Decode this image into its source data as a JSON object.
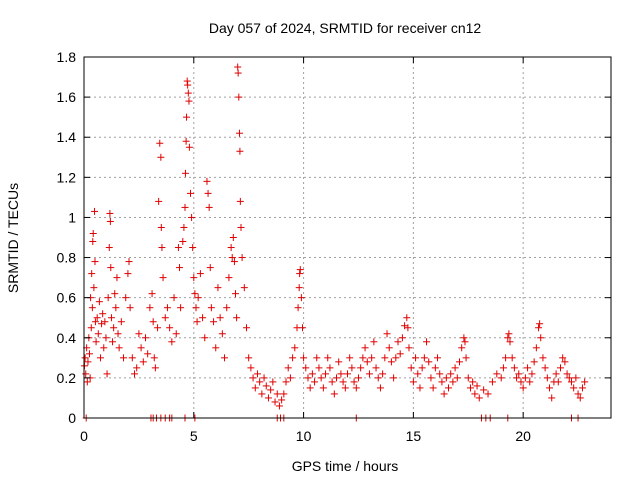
{
  "chart_data": {
    "type": "scatter",
    "title": "Day 057 of 2024, SRMTID for receiver cn12",
    "xlabel": "GPS time / hours",
    "ylabel": "SRMTID / TECUs",
    "xlim": [
      0,
      24
    ],
    "ylim": [
      0,
      1.8
    ],
    "xticks": [
      0,
      5,
      10,
      15,
      20
    ],
    "xtick_labels": [
      "0",
      "5",
      "10",
      "15",
      "20"
    ],
    "yticks": [
      0,
      0.2,
      0.4,
      0.6,
      0.8,
      1.0,
      1.2,
      1.4,
      1.6,
      1.8
    ],
    "ytick_labels": [
      "0",
      "0.2",
      "0.4",
      "0.6",
      "0.8",
      "1",
      "1.2",
      "1.4",
      "1.6",
      "1.8"
    ],
    "grid": true,
    "marker": "+",
    "color": "#e00000",
    "series": [
      {
        "name": "SRMTID",
        "points": [
          [
            0.02,
            0.26
          ],
          [
            0.05,
            0.3
          ],
          [
            0.08,
            0.22
          ],
          [
            0.12,
            0.35
          ],
          [
            0.15,
            0.18
          ],
          [
            0.18,
            0.28
          ],
          [
            0.22,
            0.4
          ],
          [
            0.25,
            0.32
          ],
          [
            0.28,
            0.2
          ],
          [
            0.3,
            0.6
          ],
          [
            0.33,
            0.45
          ],
          [
            0.35,
            0.72
          ],
          [
            0.38,
            0.55
          ],
          [
            0.4,
            0.88
          ],
          [
            0.42,
            0.92
          ],
          [
            0.45,
            0.65
          ],
          [
            0.48,
            1.03
          ],
          [
            0.5,
            0.78
          ],
          [
            0.52,
            0.48
          ],
          [
            0.55,
            0.38
          ],
          [
            0.6,
            0.5
          ],
          [
            0.65,
            0.42
          ],
          [
            0.7,
            0.58
          ],
          [
            0.75,
            0.3
          ],
          [
            0.8,
            0.47
          ],
          [
            0.85,
            0.52
          ],
          [
            0.9,
            0.35
          ],
          [
            0.95,
            0.48
          ],
          [
            1.0,
            0.4
          ],
          [
            1.05,
            0.22
          ],
          [
            1.1,
            0.6
          ],
          [
            1.15,
            0.85
          ],
          [
            1.18,
            1.02
          ],
          [
            1.2,
            0.98
          ],
          [
            1.22,
            0.75
          ],
          [
            1.25,
            0.5
          ],
          [
            1.3,
            0.38
          ],
          [
            1.35,
            0.45
          ],
          [
            1.4,
            0.62
          ],
          [
            1.45,
            0.55
          ],
          [
            1.5,
            0.7
          ],
          [
            1.55,
            0.42
          ],
          [
            1.6,
            0.35
          ],
          [
            1.7,
            0.48
          ],
          [
            1.8,
            0.3
          ],
          [
            1.9,
            0.6
          ],
          [
            2.0,
            0.72
          ],
          [
            2.05,
            0.78
          ],
          [
            2.1,
            0.55
          ],
          [
            2.2,
            0.3
          ],
          [
            2.3,
            0.22
          ],
          [
            2.4,
            0.25
          ],
          [
            2.5,
            0.42
          ],
          [
            2.6,
            0.35
          ],
          [
            2.7,
            0.28
          ],
          [
            2.8,
            0.4
          ],
          [
            2.9,
            0.32
          ],
          [
            3.0,
            0.55
          ],
          [
            3.1,
            0.62
          ],
          [
            3.15,
            0.48
          ],
          [
            3.2,
            0.3
          ],
          [
            3.25,
            0.25
          ],
          [
            3.35,
            0.45
          ],
          [
            3.4,
            1.08
          ],
          [
            3.45,
            1.37
          ],
          [
            3.5,
            1.3
          ],
          [
            3.52,
            0.95
          ],
          [
            3.55,
            0.85
          ],
          [
            3.6,
            0.7
          ],
          [
            3.7,
            0.5
          ],
          [
            3.8,
            0.55
          ],
          [
            3.9,
            0.45
          ],
          [
            4.0,
            0.38
          ],
          [
            4.1,
            0.6
          ],
          [
            4.2,
            0.42
          ],
          [
            4.3,
            0.85
          ],
          [
            4.35,
            0.75
          ],
          [
            4.4,
            0.55
          ],
          [
            4.5,
            0.88
          ],
          [
            4.55,
            0.95
          ],
          [
            4.6,
            1.05
          ],
          [
            4.62,
            1.22
          ],
          [
            4.65,
            1.38
          ],
          [
            4.67,
            1.5
          ],
          [
            4.7,
            1.68
          ],
          [
            4.72,
            1.66
          ],
          [
            4.75,
            1.62
          ],
          [
            4.78,
            1.58
          ],
          [
            4.8,
            1.35
          ],
          [
            4.85,
            1.12
          ],
          [
            4.9,
            1.0
          ],
          [
            4.95,
            0.85
          ],
          [
            5.0,
            0.7
          ],
          [
            5.05,
            0.62
          ],
          [
            5.1,
            0.55
          ],
          [
            5.15,
            0.48
          ],
          [
            5.2,
            0.6
          ],
          [
            5.3,
            0.72
          ],
          [
            5.4,
            0.5
          ],
          [
            5.5,
            0.4
          ],
          [
            5.6,
            1.18
          ],
          [
            5.65,
            1.12
          ],
          [
            5.7,
            1.05
          ],
          [
            5.75,
            0.75
          ],
          [
            5.8,
            0.55
          ],
          [
            5.9,
            0.48
          ],
          [
            6.0,
            0.35
          ],
          [
            6.1,
            0.65
          ],
          [
            6.2,
            0.5
          ],
          [
            6.3,
            0.42
          ],
          [
            6.4,
            0.3
          ],
          [
            6.5,
            0.55
          ],
          [
            6.6,
            0.7
          ],
          [
            6.7,
            0.85
          ],
          [
            6.75,
            0.8
          ],
          [
            6.8,
            0.9
          ],
          [
            6.85,
            0.78
          ],
          [
            6.9,
            0.62
          ],
          [
            6.95,
            0.5
          ],
          [
            7.0,
            1.75
          ],
          [
            7.02,
            1.72
          ],
          [
            7.05,
            1.6
          ],
          [
            7.08,
            1.42
          ],
          [
            7.1,
            1.33
          ],
          [
            7.12,
            1.08
          ],
          [
            7.15,
            0.95
          ],
          [
            7.2,
            0.8
          ],
          [
            7.3,
            0.65
          ],
          [
            7.4,
            0.45
          ],
          [
            7.5,
            0.3
          ],
          [
            7.6,
            0.25
          ],
          [
            7.7,
            0.2
          ],
          [
            7.8,
            0.15
          ],
          [
            7.9,
            0.22
          ],
          [
            8.0,
            0.18
          ],
          [
            8.1,
            0.12
          ],
          [
            8.2,
            0.2
          ],
          [
            8.3,
            0.16
          ],
          [
            8.4,
            0.1
          ],
          [
            8.5,
            0.14
          ],
          [
            8.6,
            0.18
          ],
          [
            8.7,
            0.08
          ],
          [
            8.8,
            0.12
          ],
          [
            8.9,
            0.06
          ],
          [
            9.0,
            0.09
          ],
          [
            9.1,
            0.12
          ],
          [
            9.2,
            0.18
          ],
          [
            9.3,
            0.25
          ],
          [
            9.4,
            0.2
          ],
          [
            9.5,
            0.3
          ],
          [
            9.6,
            0.35
          ],
          [
            9.7,
            0.45
          ],
          [
            9.75,
            0.55
          ],
          [
            9.8,
            0.65
          ],
          [
            9.82,
            0.72
          ],
          [
            9.85,
            0.74
          ],
          [
            9.9,
            0.6
          ],
          [
            9.95,
            0.45
          ],
          [
            10.0,
            0.3
          ],
          [
            10.1,
            0.25
          ],
          [
            10.2,
            0.2
          ],
          [
            10.3,
            0.15
          ],
          [
            10.4,
            0.22
          ],
          [
            10.5,
            0.18
          ],
          [
            10.6,
            0.3
          ],
          [
            10.7,
            0.25
          ],
          [
            10.8,
            0.2
          ],
          [
            10.9,
            0.15
          ],
          [
            11.0,
            0.22
          ],
          [
            11.1,
            0.3
          ],
          [
            11.2,
            0.25
          ],
          [
            11.3,
            0.18
          ],
          [
            11.4,
            0.12
          ],
          [
            11.5,
            0.2
          ],
          [
            11.6,
            0.28
          ],
          [
            11.7,
            0.22
          ],
          [
            11.8,
            0.18
          ],
          [
            11.9,
            0.15
          ],
          [
            12.0,
            0.22
          ],
          [
            12.1,
            0.3
          ],
          [
            12.2,
            0.25
          ],
          [
            12.3,
            0.18
          ],
          [
            12.4,
            0.15
          ],
          [
            12.5,
            0.2
          ],
          [
            12.6,
            0.25
          ],
          [
            12.7,
            0.3
          ],
          [
            12.8,
            0.35
          ],
          [
            12.9,
            0.28
          ],
          [
            13.0,
            0.22
          ],
          [
            13.1,
            0.3
          ],
          [
            13.2,
            0.38
          ],
          [
            13.3,
            0.25
          ],
          [
            13.4,
            0.2
          ],
          [
            13.5,
            0.15
          ],
          [
            13.6,
            0.22
          ],
          [
            13.7,
            0.3
          ],
          [
            13.8,
            0.42
          ],
          [
            13.9,
            0.35
          ],
          [
            14.0,
            0.28
          ],
          [
            14.1,
            0.2
          ],
          [
            14.2,
            0.3
          ],
          [
            14.3,
            0.38
          ],
          [
            14.4,
            0.32
          ],
          [
            14.5,
            0.4
          ],
          [
            14.6,
            0.46
          ],
          [
            14.7,
            0.5
          ],
          [
            14.75,
            0.45
          ],
          [
            14.8,
            0.35
          ],
          [
            14.9,
            0.25
          ],
          [
            15.0,
            0.18
          ],
          [
            15.1,
            0.3
          ],
          [
            15.2,
            0.22
          ],
          [
            15.3,
            0.15
          ],
          [
            15.4,
            0.25
          ],
          [
            15.5,
            0.3
          ],
          [
            15.6,
            0.38
          ],
          [
            15.7,
            0.28
          ],
          [
            15.8,
            0.2
          ],
          [
            15.9,
            0.15
          ],
          [
            16.0,
            0.25
          ],
          [
            16.1,
            0.3
          ],
          [
            16.2,
            0.22
          ],
          [
            16.3,
            0.18
          ],
          [
            16.4,
            0.12
          ],
          [
            16.5,
            0.2
          ],
          [
            16.6,
            0.15
          ],
          [
            16.7,
            0.22
          ],
          [
            16.8,
            0.18
          ],
          [
            16.9,
            0.25
          ],
          [
            17.0,
            0.2
          ],
          [
            17.1,
            0.28
          ],
          [
            17.2,
            0.35
          ],
          [
            17.3,
            0.4
          ],
          [
            17.35,
            0.38
          ],
          [
            17.4,
            0.3
          ],
          [
            17.5,
            0.2
          ],
          [
            17.6,
            0.15
          ],
          [
            17.7,
            0.18
          ],
          [
            17.8,
            0.12
          ],
          [
            17.9,
            0.16
          ],
          [
            18.0,
            0.1
          ],
          [
            18.2,
            0.14
          ],
          [
            18.4,
            0.12
          ],
          [
            18.6,
            0.18
          ],
          [
            18.8,
            0.22
          ],
          [
            19.0,
            0.2
          ],
          [
            19.1,
            0.25
          ],
          [
            19.2,
            0.3
          ],
          [
            19.3,
            0.4
          ],
          [
            19.35,
            0.42
          ],
          [
            19.4,
            0.38
          ],
          [
            19.5,
            0.3
          ],
          [
            19.6,
            0.25
          ],
          [
            19.7,
            0.2
          ],
          [
            19.8,
            0.22
          ],
          [
            19.9,
            0.18
          ],
          [
            20.0,
            0.15
          ],
          [
            20.1,
            0.2
          ],
          [
            20.2,
            0.25
          ],
          [
            20.3,
            0.18
          ],
          [
            20.4,
            0.22
          ],
          [
            20.5,
            0.28
          ],
          [
            20.6,
            0.35
          ],
          [
            20.7,
            0.45
          ],
          [
            20.75,
            0.47
          ],
          [
            20.8,
            0.4
          ],
          [
            20.9,
            0.3
          ],
          [
            21.0,
            0.25
          ],
          [
            21.1,
            0.2
          ],
          [
            21.2,
            0.15
          ],
          [
            21.3,
            0.1
          ],
          [
            21.4,
            0.18
          ],
          [
            21.5,
            0.22
          ],
          [
            21.6,
            0.18
          ],
          [
            21.7,
            0.25
          ],
          [
            21.8,
            0.3
          ],
          [
            21.9,
            0.28
          ],
          [
            22.0,
            0.22
          ],
          [
            22.1,
            0.2
          ],
          [
            22.2,
            0.18
          ],
          [
            22.3,
            0.15
          ],
          [
            22.4,
            0.2
          ],
          [
            22.5,
            0.12
          ],
          [
            22.6,
            0.1
          ],
          [
            22.7,
            0.15
          ],
          [
            22.8,
            0.18
          ],
          [
            0.1,
            0.0
          ],
          [
            3.05,
            0.0
          ],
          [
            3.15,
            0.0
          ],
          [
            3.3,
            0.0
          ],
          [
            3.5,
            0.0
          ],
          [
            3.7,
            0.0
          ],
          [
            3.9,
            0.0
          ],
          [
            4.0,
            0.0
          ],
          [
            4.6,
            0.0
          ],
          [
            5.05,
            0.0
          ],
          [
            8.8,
            0.0
          ],
          [
            8.95,
            0.0
          ],
          [
            9.1,
            0.0
          ],
          [
            12.4,
            0.0
          ],
          [
            18.1,
            0.0
          ],
          [
            18.3,
            0.0
          ],
          [
            18.5,
            0.0
          ],
          [
            19.3,
            0.0
          ],
          [
            22.2,
            0.0
          ],
          [
            22.5,
            0.0
          ]
        ]
      }
    ]
  }
}
